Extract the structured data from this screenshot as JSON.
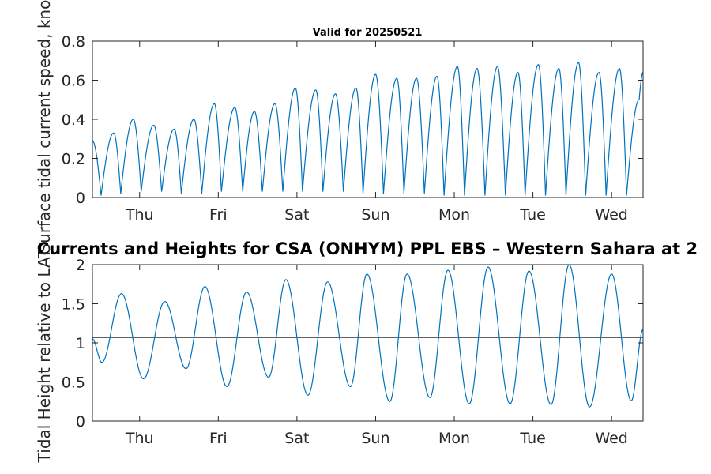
{
  "chart_data": [
    {
      "type": "line",
      "title": "Valid for 20250521",
      "ylabel": "Surface tidal current speed, knots",
      "xlabel": "",
      "ylim": [
        0,
        0.8
      ],
      "yticks": [
        "0",
        "0.2",
        "0.4",
        "0.6",
        "0.8"
      ],
      "ytick_values": [
        0,
        0.2,
        0.4,
        0.6,
        0.8
      ],
      "xlim": [
        0,
        7
      ],
      "xticks": [
        "Thu",
        "Fri",
        "Sat",
        "Sun",
        "Mon",
        "Tue",
        "Wed"
      ],
      "xtick_values": [
        0.6,
        1.6,
        2.6,
        3.6,
        4.6,
        5.6,
        6.6
      ],
      "grid": false,
      "series": [
        {
          "color": "#0072bd",
          "x": [
            0,
            0.11,
            0.27,
            0.36,
            0.52,
            0.62,
            0.78,
            0.88,
            1.04,
            1.13,
            1.29,
            1.39,
            1.55,
            1.64,
            1.81,
            1.91,
            2.06,
            2.16,
            2.32,
            2.42,
            2.58,
            2.67,
            2.84,
            2.93,
            3.09,
            3.19,
            3.35,
            3.44,
            3.6,
            3.7,
            3.87,
            3.96,
            4.12,
            4.22,
            4.38,
            4.47,
            4.64,
            4.73,
            4.89,
            4.99,
            5.15,
            5.25,
            5.41,
            5.5,
            5.67,
            5.76,
            5.93,
            6.02,
            6.18,
            6.27,
            6.44,
            6.53,
            6.7,
            6.79,
            6.95,
            7.0
          ],
          "values": [
            0.29,
            0.01,
            0.33,
            0.02,
            0.4,
            0.03,
            0.37,
            0.03,
            0.35,
            0.02,
            0.4,
            0.02,
            0.48,
            0.03,
            0.46,
            0.03,
            0.44,
            0.03,
            0.48,
            0.03,
            0.56,
            0.03,
            0.55,
            0.03,
            0.53,
            0.03,
            0.56,
            0.02,
            0.63,
            0.02,
            0.61,
            0.02,
            0.61,
            0.02,
            0.62,
            0.01,
            0.67,
            0.01,
            0.66,
            0.01,
            0.67,
            0.01,
            0.64,
            0.01,
            0.68,
            0.01,
            0.66,
            0.01,
            0.69,
            0.01,
            0.64,
            0.01,
            0.66,
            0.01,
            0.5,
            0.64
          ]
        }
      ]
    },
    {
      "type": "line",
      "title": "Currents and Heights for CSA (ONHYM) PPL EBS  – Western Sahara at 2",
      "ylabel": "Tidal Height relative to LAT",
      "xlabel": "",
      "ylim": [
        0,
        2
      ],
      "yticks": [
        "0",
        "0.5",
        "1",
        "1.5",
        "2"
      ],
      "ytick_values": [
        0,
        0.5,
        1,
        1.5,
        2
      ],
      "xlim": [
        0,
        7
      ],
      "xticks": [
        "Thu",
        "Fri",
        "Sat",
        "Sun",
        "Mon",
        "Tue",
        "Wed"
      ],
      "xtick_values": [
        0.6,
        1.6,
        2.6,
        3.6,
        4.6,
        5.6,
        6.6
      ],
      "grid": false,
      "reference_line": 1.07,
      "series": [
        {
          "color": "#0072bd",
          "x": [
            0,
            0.12,
            0.37,
            0.65,
            0.92,
            1.19,
            1.43,
            1.71,
            1.96,
            2.24,
            2.46,
            2.74,
            2.99,
            3.28,
            3.49,
            3.78,
            4.0,
            4.29,
            4.52,
            4.79,
            5.03,
            5.31,
            5.55,
            5.83,
            6.06,
            6.32,
            6.6,
            6.85,
            7.0
          ],
          "values": [
            1.05,
            0.75,
            1.63,
            0.54,
            1.53,
            0.67,
            1.72,
            0.44,
            1.65,
            0.56,
            1.81,
            0.33,
            1.78,
            0.44,
            1.88,
            0.25,
            1.88,
            0.3,
            1.93,
            0.22,
            1.97,
            0.22,
            1.92,
            0.21,
            2.0,
            0.18,
            1.88,
            0.26,
            1.17
          ]
        }
      ]
    }
  ]
}
